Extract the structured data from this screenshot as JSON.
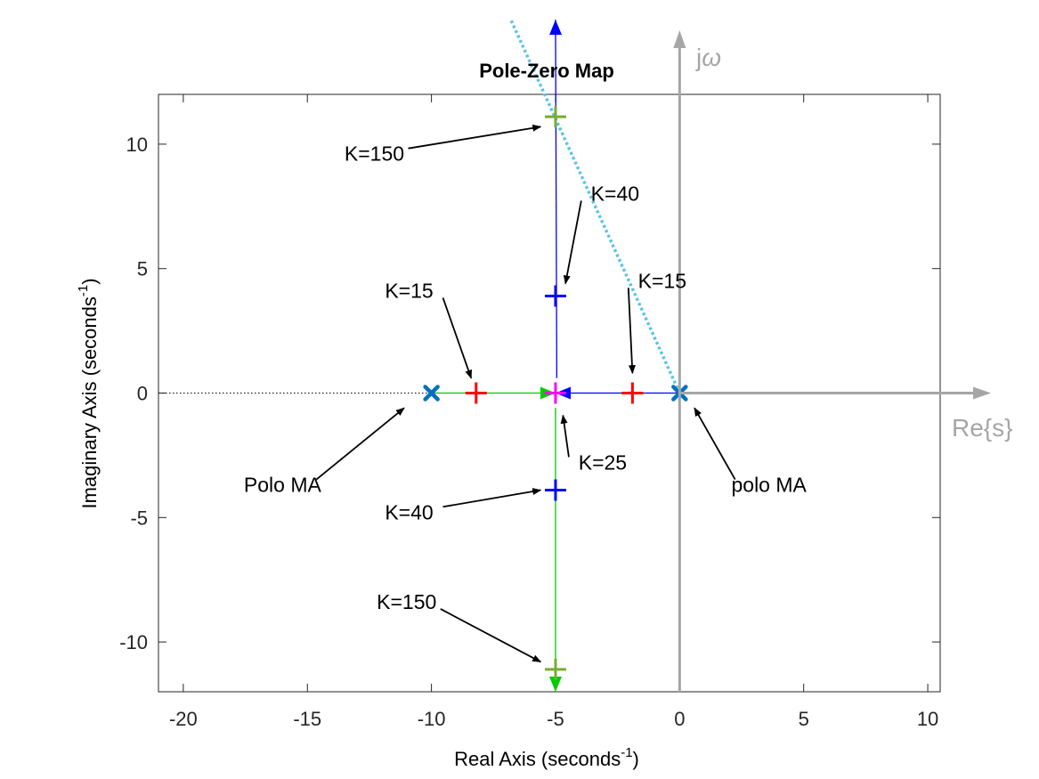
{
  "chart_data": {
    "type": "scatter",
    "title": "Pole-Zero Map",
    "xlabel": "Real Axis (seconds",
    "ylabel": "Imaginary Axis (seconds",
    "label_exponent": "-1",
    "label_suffix": ")",
    "xlim": [
      -21,
      10.5
    ],
    "ylim": [
      -12,
      12
    ],
    "xticks": [
      -20,
      -15,
      -10,
      -5,
      0,
      5,
      10
    ],
    "yticks": [
      -10,
      -5,
      0,
      5,
      10
    ],
    "grid": false,
    "axes_overlay": {
      "real_label": "Re{s}",
      "imag_label_prefix": "j",
      "imag_label_symbol": "ω",
      "color": "#a6a6a6"
    },
    "poles_open_loop": [
      {
        "x": -10,
        "y": 0
      },
      {
        "x": 0,
        "y": 0
      }
    ],
    "closed_loop_points": [
      {
        "gain": "K=15",
        "x": -8.2,
        "y": 0,
        "color": "#ff0000"
      },
      {
        "gain": "K=15",
        "x": -1.9,
        "y": 0,
        "color": "#ff0000"
      },
      {
        "gain": "K=25",
        "x": -5,
        "y": 0,
        "color": "#ff00ff"
      },
      {
        "gain": "K=40",
        "x": -5,
        "y": 3.9,
        "color": "#0000ff"
      },
      {
        "gain": "K=40",
        "x": -5,
        "y": -3.9,
        "color": "#0000ff"
      },
      {
        "gain": "K=150",
        "x": -5,
        "y": 11.1,
        "color": "#77ac30"
      },
      {
        "gain": "K=150",
        "x": -5,
        "y": -11.1,
        "color": "#77ac30"
      }
    ],
    "locus_branches": [
      {
        "color": "#00cc00",
        "points": [
          [
            -10,
            0
          ],
          [
            -5,
            0
          ]
        ]
      },
      {
        "color": "#0000ff",
        "points": [
          [
            0,
            0
          ],
          [
            -5,
            0
          ]
        ]
      },
      {
        "color": "#0000ff",
        "points": [
          [
            -4.95,
            0.6
          ],
          [
            -5,
            15
          ]
        ]
      },
      {
        "color": "#00cc00",
        "points": [
          [
            -5,
            -0.6
          ],
          [
            -5,
            -12
          ]
        ]
      }
    ],
    "damping_line": {
      "color": "#59c3e8",
      "points": [
        [
          0,
          0
        ],
        [
          -6.8,
          15
        ]
      ]
    },
    "annotations": [
      {
        "text": "K=150",
        "tx": -12.3,
        "ty": 9.4,
        "ax": -5.6,
        "ay": 10.7
      },
      {
        "text": "K=40",
        "tx": -2.6,
        "ty": 7.8,
        "ax": -4.6,
        "ay": 4.4
      },
      {
        "text": "K=15",
        "tx": -10.9,
        "ty": 3.9,
        "ax": -8.4,
        "ay": 0.6
      },
      {
        "text": "K=15",
        "tx": -0.7,
        "ty": 4.3,
        "ax": -1.9,
        "ay": 0.8
      },
      {
        "text": "K=25",
        "tx": -3.1,
        "ty": -3.0,
        "ax": -4.7,
        "ay": -0.9
      },
      {
        "text": "Polo MA",
        "tx": -16.0,
        "ty": -3.9,
        "ax": -11.1,
        "ay": -0.6
      },
      {
        "text": "polo MA",
        "tx": 3.6,
        "ty": -3.9,
        "ax": 0.6,
        "ay": -0.6
      },
      {
        "text": "K=40",
        "tx": -10.9,
        "ty": -5.0,
        "ax": -5.6,
        "ay": -3.9
      },
      {
        "text": "K=150",
        "tx": -11.0,
        "ty": -8.6,
        "ax": -5.6,
        "ay": -10.8
      }
    ]
  }
}
